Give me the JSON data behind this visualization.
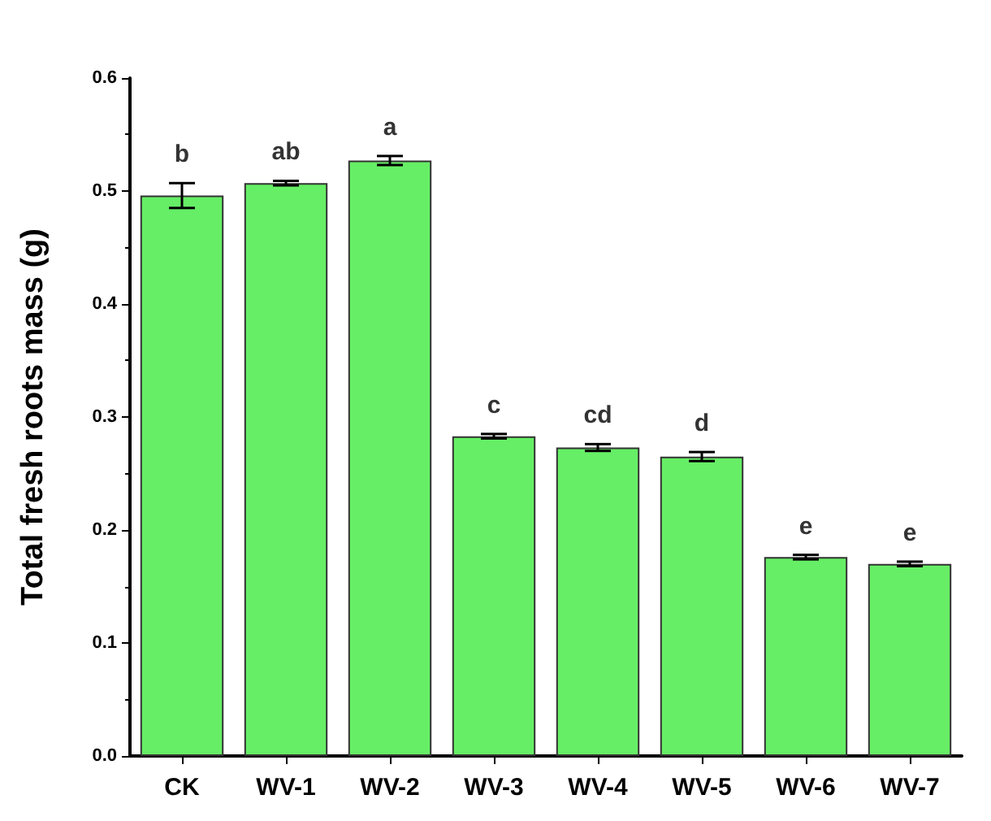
{
  "chart_data": {
    "type": "bar",
    "ylabel": "Total fresh roots mass (g)",
    "categories": [
      "CK",
      "WV-1",
      "WV-2",
      "WV-3",
      "WV-4",
      "WV-5",
      "WV-6",
      "WV-7"
    ],
    "values": [
      0.496,
      0.507,
      0.527,
      0.283,
      0.273,
      0.265,
      0.176,
      0.17
    ],
    "errors": [
      0.011,
      0.002,
      0.004,
      0.002,
      0.003,
      0.004,
      0.002,
      0.002
    ],
    "color": "#66ee66",
    "ylim": [
      0,
      0.6
    ],
    "yticks": [
      {
        "value": 0,
        "label": "0.0"
      },
      {
        "value": 0.1,
        "label": "0.1"
      },
      {
        "value": 0.2,
        "label": "0.2"
      },
      {
        "value": 0.3,
        "label": "0.3"
      },
      {
        "value": 0.4,
        "label": "0.4"
      },
      {
        "value": 0.5,
        "label": "0.5"
      },
      {
        "value": 0.6,
        "label": "0.6"
      }
    ],
    "annotations": [
      {
        "text": "b",
        "x": "CK",
        "y": 0.507
      },
      {
        "text": "ab",
        "x": "WV-1",
        "y": 0.509
      },
      {
        "text": "a",
        "x": "WV-2",
        "y": 0.531
      },
      {
        "text": "c",
        "x": "WV-3",
        "y": 0.285
      },
      {
        "text": "cd",
        "x": "WV-4",
        "y": 0.276
      },
      {
        "text": "d",
        "x": "WV-5",
        "y": 0.269
      },
      {
        "text": "e",
        "x": "WV-6",
        "y": 0.178
      },
      {
        "text": "e",
        "x": "WV-7",
        "y": 0.172
      }
    ],
    "grid": false
  }
}
